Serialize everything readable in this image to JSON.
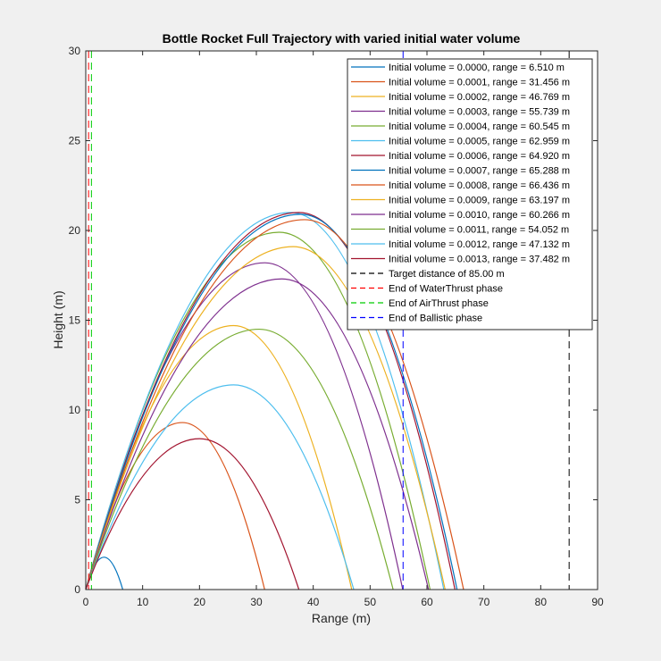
{
  "chart_data": {
    "type": "line",
    "title": "Bottle Rocket Full Trajectory with varied initial water volume",
    "xlabel": "Range (m)",
    "ylabel": "Height (m)",
    "xlim": [
      0,
      90
    ],
    "ylim": [
      0,
      30
    ],
    "xticks": [
      0,
      10,
      20,
      30,
      40,
      50,
      60,
      70,
      80,
      90
    ],
    "yticks": [
      0,
      5,
      10,
      15,
      20,
      25,
      30
    ],
    "grid": false,
    "legend_position": "top-right",
    "series": [
      {
        "name": "Initial volume = 0.0000, range = 6.510 m",
        "color": "#0072BD",
        "range": 6.51,
        "peak_x": 3.2,
        "peak_y": 1.8
      },
      {
        "name": "Initial volume = 0.0001, range = 31.456 m",
        "color": "#D95319",
        "range": 31.456,
        "peak_x": 17.0,
        "peak_y": 9.3
      },
      {
        "name": "Initial volume = 0.0002, range = 46.769 m",
        "color": "#EDB120",
        "range": 46.769,
        "peak_x": 26.0,
        "peak_y": 14.7
      },
      {
        "name": "Initial volume = 0.0003, range = 55.739 m",
        "color": "#7E2F8E",
        "range": 55.739,
        "peak_x": 31.5,
        "peak_y": 18.2
      },
      {
        "name": "Initial volume = 0.0004, range = 60.545 m",
        "color": "#77AC30",
        "range": 60.545,
        "peak_x": 34.0,
        "peak_y": 19.9
      },
      {
        "name": "Initial volume = 0.0005, range = 62.959 m",
        "color": "#4DBEEE",
        "range": 62.959,
        "peak_x": 36.0,
        "peak_y": 21.0
      },
      {
        "name": "Initial volume = 0.0006, range = 64.920 m",
        "color": "#A2142F",
        "range": 64.92,
        "peak_x": 37.5,
        "peak_y": 21.0
      },
      {
        "name": "Initial volume = 0.0007, range = 65.288 m",
        "color": "#0072BD",
        "range": 65.288,
        "peak_x": 37.8,
        "peak_y": 20.9
      },
      {
        "name": "Initial volume = 0.0008, range = 66.436 m",
        "color": "#D95319",
        "range": 66.436,
        "peak_x": 38.5,
        "peak_y": 20.6
      },
      {
        "name": "Initial volume = 0.0009, range = 63.197 m",
        "color": "#EDB120",
        "range": 63.197,
        "peak_x": 36.5,
        "peak_y": 19.1
      },
      {
        "name": "Initial volume = 0.0010, range = 60.266 m",
        "color": "#7E2F8E",
        "range": 60.266,
        "peak_x": 34.5,
        "peak_y": 17.3
      },
      {
        "name": "Initial volume = 0.0011, range = 54.052 m",
        "color": "#77AC30",
        "range": 54.052,
        "peak_x": 30.5,
        "peak_y": 14.5
      },
      {
        "name": "Initial volume = 0.0012, range = 47.132 m",
        "color": "#4DBEEE",
        "range": 47.132,
        "peak_x": 26.0,
        "peak_y": 11.4
      },
      {
        "name": "Initial volume = 0.0013, range = 37.482 m",
        "color": "#A2142F",
        "range": 37.482,
        "peak_x": 20.0,
        "peak_y": 8.4
      }
    ],
    "reference_lines": [
      {
        "name": "Target distance of 85.00 m",
        "x": 85.0,
        "color": "#000000"
      },
      {
        "name": "End of WaterThrust phase",
        "x": 0.5,
        "color": "#FF0000"
      },
      {
        "name": "End of AirThrust phase",
        "x": 1.0,
        "color": "#00CC00"
      },
      {
        "name": "End of Ballistic phase",
        "x": 55.8,
        "color": "#0000FF"
      }
    ]
  }
}
